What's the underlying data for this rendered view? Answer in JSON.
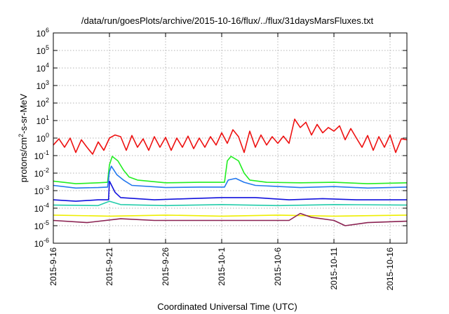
{
  "chart_data": {
    "type": "line",
    "title": "/data/run/goesPlots/archive/2015-10-16/flux/../flux/31daysMarsFluxes.txt",
    "xlabel": "Coordinated Universal Time (UTC)",
    "ylabel": "protons/cm2-s-sr-MeV",
    "ylabel_parts": {
      "base": "protons/cm",
      "exp": "2",
      "rest": "-s-sr-MeV"
    },
    "yscale": "log",
    "ylim": [
      1e-06,
      1000000.0
    ],
    "xlim": [
      "2015-09-16",
      "2015-10-17T12:00"
    ],
    "grid": true,
    "yticks": [
      {
        "value": -6,
        "base": "10",
        "exp": "-6"
      },
      {
        "value": -5,
        "base": "10",
        "exp": "-5"
      },
      {
        "value": -4,
        "base": "10",
        "exp": "-4"
      },
      {
        "value": -3,
        "base": "10",
        "exp": "-3"
      },
      {
        "value": -2,
        "base": "10",
        "exp": "-2"
      },
      {
        "value": -1,
        "base": "10",
        "exp": "-1"
      },
      {
        "value": 0,
        "base": "10",
        "exp": "0"
      },
      {
        "value": 1,
        "base": "10",
        "exp": "1"
      },
      {
        "value": 2,
        "base": "10",
        "exp": "2"
      },
      {
        "value": 3,
        "base": "10",
        "exp": "3"
      },
      {
        "value": 4,
        "base": "10",
        "exp": "4"
      },
      {
        "value": 5,
        "base": "10",
        "exp": "5"
      },
      {
        "value": 6,
        "base": "10",
        "exp": "6"
      }
    ],
    "xticks": [
      {
        "date": "2015-09-16",
        "label": "2015-9-16"
      },
      {
        "date": "2015-09-21",
        "label": "2015-9-21"
      },
      {
        "date": "2015-09-26",
        "label": "2015-9-26"
      },
      {
        "date": "2015-10-01",
        "label": "2015-10-1"
      },
      {
        "date": "2015-10-06",
        "label": "2015-10-6"
      },
      {
        "date": "2015-10-11",
        "label": "2015-10-11"
      },
      {
        "date": "2015-10-16",
        "label": "2015-10-16"
      }
    ],
    "series": [
      {
        "color": "#ee1111",
        "points": [
          [
            "2015-09-16T00:00",
            0.4
          ],
          [
            "2015-09-16T12:00",
            0.9
          ],
          [
            "2015-09-17T00:00",
            0.3
          ],
          [
            "2015-09-17T12:00",
            1.0
          ],
          [
            "2015-09-18T00:00",
            0.15
          ],
          [
            "2015-09-18T12:00",
            0.8
          ],
          [
            "2015-09-19T00:00",
            0.3
          ],
          [
            "2015-09-19T12:00",
            0.12
          ],
          [
            "2015-09-20T00:00",
            0.6
          ],
          [
            "2015-09-20T12:00",
            0.2
          ],
          [
            "2015-09-21T00:00",
            1.0
          ],
          [
            "2015-09-21T12:00",
            1.5
          ],
          [
            "2015-09-22T00:00",
            1.2
          ],
          [
            "2015-09-22T12:00",
            0.2
          ],
          [
            "2015-09-23T00:00",
            1.4
          ],
          [
            "2015-09-23T12:00",
            0.3
          ],
          [
            "2015-09-24T00:00",
            0.9
          ],
          [
            "2015-09-24T12:00",
            0.2
          ],
          [
            "2015-09-25T00:00",
            1.2
          ],
          [
            "2015-09-25T12:00",
            0.3
          ],
          [
            "2015-09-26T00:00",
            1.1
          ],
          [
            "2015-09-26T12:00",
            0.2
          ],
          [
            "2015-09-27T00:00",
            1.0
          ],
          [
            "2015-09-27T12:00",
            0.3
          ],
          [
            "2015-09-28T00:00",
            1.3
          ],
          [
            "2015-09-28T12:00",
            0.25
          ],
          [
            "2015-09-29T00:00",
            1.0
          ],
          [
            "2015-09-29T12:00",
            0.3
          ],
          [
            "2015-09-30T00:00",
            1.2
          ],
          [
            "2015-09-30T12:00",
            0.4
          ],
          [
            "2015-10-01T00:00",
            2.0
          ],
          [
            "2015-10-01T12:00",
            0.5
          ],
          [
            "2015-10-02T00:00",
            3.0
          ],
          [
            "2015-10-02T12:00",
            1.2
          ],
          [
            "2015-10-03T00:00",
            0.15
          ],
          [
            "2015-10-03T12:00",
            2.5
          ],
          [
            "2015-10-04T00:00",
            0.3
          ],
          [
            "2015-10-04T12:00",
            1.5
          ],
          [
            "2015-10-05T00:00",
            0.4
          ],
          [
            "2015-10-05T12:00",
            1.2
          ],
          [
            "2015-10-06T00:00",
            0.5
          ],
          [
            "2015-10-06T12:00",
            1.3
          ],
          [
            "2015-10-07T00:00",
            0.5
          ],
          [
            "2015-10-07T12:00",
            12
          ],
          [
            "2015-10-08T00:00",
            4.0
          ],
          [
            "2015-10-08T12:00",
            8.0
          ],
          [
            "2015-10-09T00:00",
            1.5
          ],
          [
            "2015-10-09T12:00",
            6.0
          ],
          [
            "2015-10-10T00:00",
            2.0
          ],
          [
            "2015-10-10T12:00",
            4.0
          ],
          [
            "2015-10-11T00:00",
            2.5
          ],
          [
            "2015-10-11T12:00",
            5.0
          ],
          [
            "2015-10-12T00:00",
            0.8
          ],
          [
            "2015-10-12T12:00",
            3.5
          ],
          [
            "2015-10-13T00:00",
            1.0
          ],
          [
            "2015-10-13T12:00",
            0.3
          ],
          [
            "2015-10-14T00:00",
            1.4
          ],
          [
            "2015-10-14T12:00",
            0.2
          ],
          [
            "2015-10-15T00:00",
            1.2
          ],
          [
            "2015-10-15T12:00",
            0.3
          ],
          [
            "2015-10-16T00:00",
            1.5
          ],
          [
            "2015-10-16T12:00",
            0.15
          ],
          [
            "2015-10-17T00:00",
            0.9
          ],
          [
            "2015-10-17T12:00",
            0.8
          ]
        ]
      },
      {
        "color": "#22ee22",
        "points": [
          [
            "2015-09-16T00:00",
            0.0035
          ],
          [
            "2015-09-18T00:00",
            0.0025
          ],
          [
            "2015-09-20T00:00",
            0.0028
          ],
          [
            "2015-09-20T20:00",
            0.003
          ],
          [
            "2015-09-21T00:00",
            0.03
          ],
          [
            "2015-09-21T06:00",
            0.09
          ],
          [
            "2015-09-21T18:00",
            0.05
          ],
          [
            "2015-09-22T06:00",
            0.015
          ],
          [
            "2015-09-22T18:00",
            0.006
          ],
          [
            "2015-09-23T12:00",
            0.004
          ],
          [
            "2015-09-26T00:00",
            0.0028
          ],
          [
            "2015-09-29T00:00",
            0.003
          ],
          [
            "2015-10-01T06:00",
            0.003
          ],
          [
            "2015-10-01T12:00",
            0.05
          ],
          [
            "2015-10-01T20:00",
            0.09
          ],
          [
            "2015-10-02T12:00",
            0.05
          ],
          [
            "2015-10-03T00:00",
            0.01
          ],
          [
            "2015-10-03T12:00",
            0.004
          ],
          [
            "2015-10-05T00:00",
            0.003
          ],
          [
            "2015-10-08T00:00",
            0.0028
          ],
          [
            "2015-10-11T00:00",
            0.003
          ],
          [
            "2015-10-14T00:00",
            0.0025
          ],
          [
            "2015-10-17T12:00",
            0.0028
          ]
        ]
      },
      {
        "color": "#2277ee",
        "points": [
          [
            "2015-09-16T00:00",
            0.002
          ],
          [
            "2015-09-18T00:00",
            0.0014
          ],
          [
            "2015-09-20T00:00",
            0.0015
          ],
          [
            "2015-09-20T20:00",
            0.0016
          ],
          [
            "2015-09-21T00:00",
            0.012
          ],
          [
            "2015-09-21T04:00",
            0.025
          ],
          [
            "2015-09-21T16:00",
            0.008
          ],
          [
            "2015-09-22T06:00",
            0.004
          ],
          [
            "2015-09-23T00:00",
            0.002
          ],
          [
            "2015-09-26T00:00",
            0.0015
          ],
          [
            "2015-09-29T00:00",
            0.0016
          ],
          [
            "2015-10-01T06:00",
            0.0016
          ],
          [
            "2015-10-01T14:00",
            0.004
          ],
          [
            "2015-10-02T06:00",
            0.005
          ],
          [
            "2015-10-03T00:00",
            0.003
          ],
          [
            "2015-10-04T00:00",
            0.002
          ],
          [
            "2015-10-08T00:00",
            0.0015
          ],
          [
            "2015-10-11T00:00",
            0.0017
          ],
          [
            "2015-10-14T00:00",
            0.0014
          ],
          [
            "2015-10-17T12:00",
            0.0016
          ]
        ]
      },
      {
        "color": "#1111dd",
        "points": [
          [
            "2015-09-16T00:00",
            0.0003
          ],
          [
            "2015-09-18T00:00",
            0.00025
          ],
          [
            "2015-09-20T00:00",
            0.0003
          ],
          [
            "2015-09-20T22:00",
            0.0003
          ],
          [
            "2015-09-21T00:00",
            0.0035
          ],
          [
            "2015-09-21T12:00",
            0.0008
          ],
          [
            "2015-09-22T00:00",
            0.0004
          ],
          [
            "2015-09-25T00:00",
            0.0003
          ],
          [
            "2015-09-28T00:00",
            0.00035
          ],
          [
            "2015-10-01T00:00",
            0.0004
          ],
          [
            "2015-10-04T00:00",
            0.0004
          ],
          [
            "2015-10-07T00:00",
            0.0003
          ],
          [
            "2015-10-10T00:00",
            0.00035
          ],
          [
            "2015-10-13T00:00",
            0.0003
          ],
          [
            "2015-10-17T12:00",
            0.0003
          ]
        ]
      },
      {
        "color": "#22ccaa",
        "points": [
          [
            "2015-09-16T00:00",
            0.00015
          ],
          [
            "2015-09-20T00:00",
            0.00014
          ],
          [
            "2015-09-21T00:00",
            0.00025
          ],
          [
            "2015-09-22T00:00",
            0.00016
          ],
          [
            "2015-09-26T00:00",
            0.00014
          ],
          [
            "2015-10-01T00:00",
            0.00016
          ],
          [
            "2015-10-06T00:00",
            0.00014
          ],
          [
            "2015-10-11T00:00",
            0.00016
          ],
          [
            "2015-10-17T12:00",
            0.00015
          ]
        ]
      },
      {
        "color": "#eeee00",
        "points": [
          [
            "2015-09-16T00:00",
            4e-05
          ],
          [
            "2015-09-21T00:00",
            3.5e-05
          ],
          [
            "2015-09-26T00:00",
            4e-05
          ],
          [
            "2015-10-01T00:00",
            3.5e-05
          ],
          [
            "2015-10-06T00:00",
            4e-05
          ],
          [
            "2015-10-11T00:00",
            3.5e-05
          ],
          [
            "2015-10-17T12:00",
            4e-05
          ]
        ]
      },
      {
        "color": "#8b2252",
        "points": [
          [
            "2015-09-16T00:00",
            2e-05
          ],
          [
            "2015-09-19T00:00",
            1.5e-05
          ],
          [
            "2015-09-22T00:00",
            2.5e-05
          ],
          [
            "2015-09-25T00:00",
            2e-05
          ],
          [
            "2015-09-28T00:00",
            2e-05
          ],
          [
            "2015-10-01T00:00",
            2e-05
          ],
          [
            "2015-10-04T00:00",
            2e-05
          ],
          [
            "2015-10-07T00:00",
            2e-05
          ],
          [
            "2015-10-08T00:00",
            5e-05
          ],
          [
            "2015-10-09T00:00",
            3e-05
          ],
          [
            "2015-10-11T00:00",
            2e-05
          ],
          [
            "2015-10-12T00:00",
            1e-05
          ],
          [
            "2015-10-14T00:00",
            1.5e-05
          ],
          [
            "2015-10-17T12:00",
            1.8e-05
          ]
        ]
      }
    ]
  }
}
